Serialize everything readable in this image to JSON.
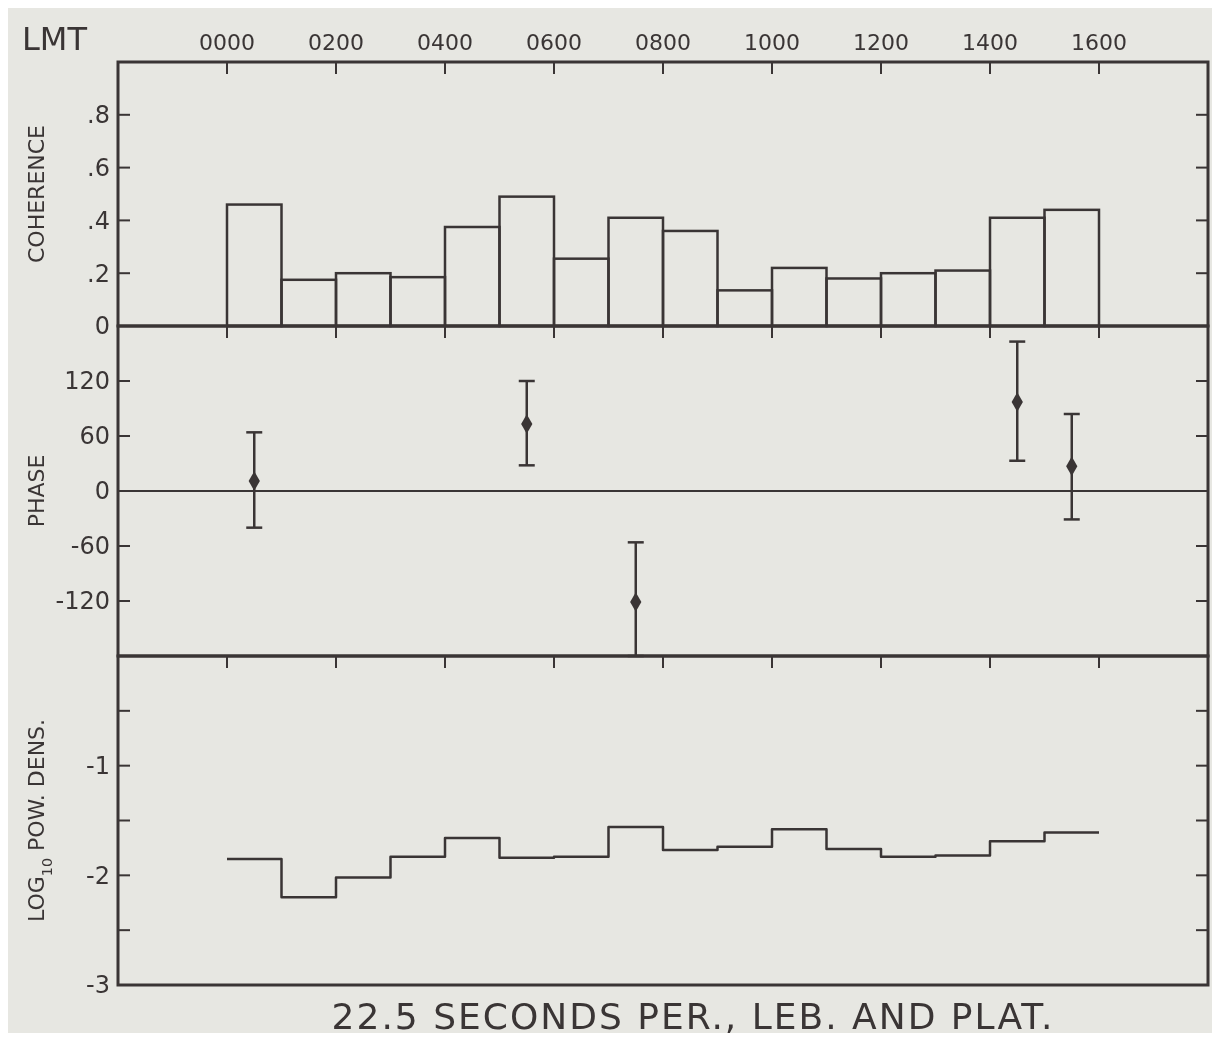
{
  "chart_data": [
    {
      "type": "histogram",
      "xlabel": "LMT",
      "ylabel": "COHERENCE",
      "bins": [
        0,
        100,
        200,
        300,
        400,
        500,
        600,
        700,
        800,
        900,
        1000,
        1100,
        1200,
        1300,
        1400,
        1500,
        1600
      ],
      "values": [
        0.46,
        0.175,
        0.2,
        0.185,
        0.375,
        0.49,
        0.255,
        0.41,
        0.36,
        0.135,
        0.22,
        0.18,
        0.2,
        0.21,
        0.41,
        0.44
      ],
      "color": "#3a3535",
      "xlim": [
        -200,
        1800
      ],
      "xticks": [
        {
          "value": 0,
          "label": "0000"
        },
        {
          "value": 200,
          "label": "0200"
        },
        {
          "value": 400,
          "label": "0400"
        },
        {
          "value": 600,
          "label": "0600"
        },
        {
          "value": 800,
          "label": "0800"
        },
        {
          "value": 1000,
          "label": "1000"
        },
        {
          "value": 1200,
          "label": "1200"
        },
        {
          "value": 1400,
          "label": "1400"
        },
        {
          "value": 1600,
          "label": "1600"
        }
      ],
      "ylim": [
        0,
        1
      ],
      "yticks": [
        0,
        {
          "value": 0.2,
          "label": ".2"
        },
        {
          "value": 0.4,
          "label": ".4"
        },
        {
          "value": 0.6,
          "label": ".6"
        },
        {
          "value": 0.8,
          "label": ".8"
        }
      ]
    },
    {
      "type": "scatter",
      "ylabel": "PHASE",
      "x": [
        50,
        550,
        750,
        1450,
        1550
      ],
      "values": [
        11,
        73,
        -121,
        97,
        27
      ],
      "errors": [
        [
          -40,
          64
        ],
        [
          28,
          120
        ],
        [
          -180,
          -56
        ],
        [
          33,
          163
        ],
        [
          -31,
          84
        ]
      ],
      "marker": "diamond",
      "color": "#3a3535",
      "xlim": [
        -200,
        1800
      ],
      "xticks": [
        0,
        200,
        400,
        600,
        800,
        1000,
        1200,
        1400,
        1600
      ],
      "ylim": [
        -180,
        180
      ],
      "yticks": [
        -120,
        -60,
        0,
        60,
        120
      ],
      "ref_lines": [
        {
          "axis": "y",
          "value": 0
        }
      ],
      "tick_labels": "y"
    },
    {
      "type": "step",
      "ylabel": "LOG$_{10}$ POW. DENS.",
      "x": [
        0,
        100,
        200,
        300,
        400,
        500,
        600,
        700,
        800,
        900,
        1000,
        1100,
        1200,
        1300,
        1400,
        1500,
        1600
      ],
      "values": [
        -1.85,
        -2.2,
        -2.02,
        -1.83,
        -1.66,
        -1.84,
        -1.83,
        -1.56,
        -1.77,
        -1.74,
        -1.58,
        -1.76,
        -1.83,
        -1.82,
        -1.69,
        -1.61,
        -1.61
      ],
      "color": "#3a3535",
      "xlim": [
        -200,
        1800
      ],
      "xticks": [
        0,
        200,
        400,
        600,
        800,
        1000,
        1200,
        1400,
        1600
      ],
      "ylim": [
        -3,
        0
      ],
      "yticks": [
        -3,
        {
          "value": -2.5,
          "label": null
        },
        -2,
        {
          "value": -1.5,
          "label": null
        },
        -1,
        {
          "value": -0.5,
          "label": null
        }
      ],
      "tick_labels": "y",
      "annotations": [
        "22.5 SECONDS PER., LEB. AND PLAT."
      ]
    }
  ]
}
